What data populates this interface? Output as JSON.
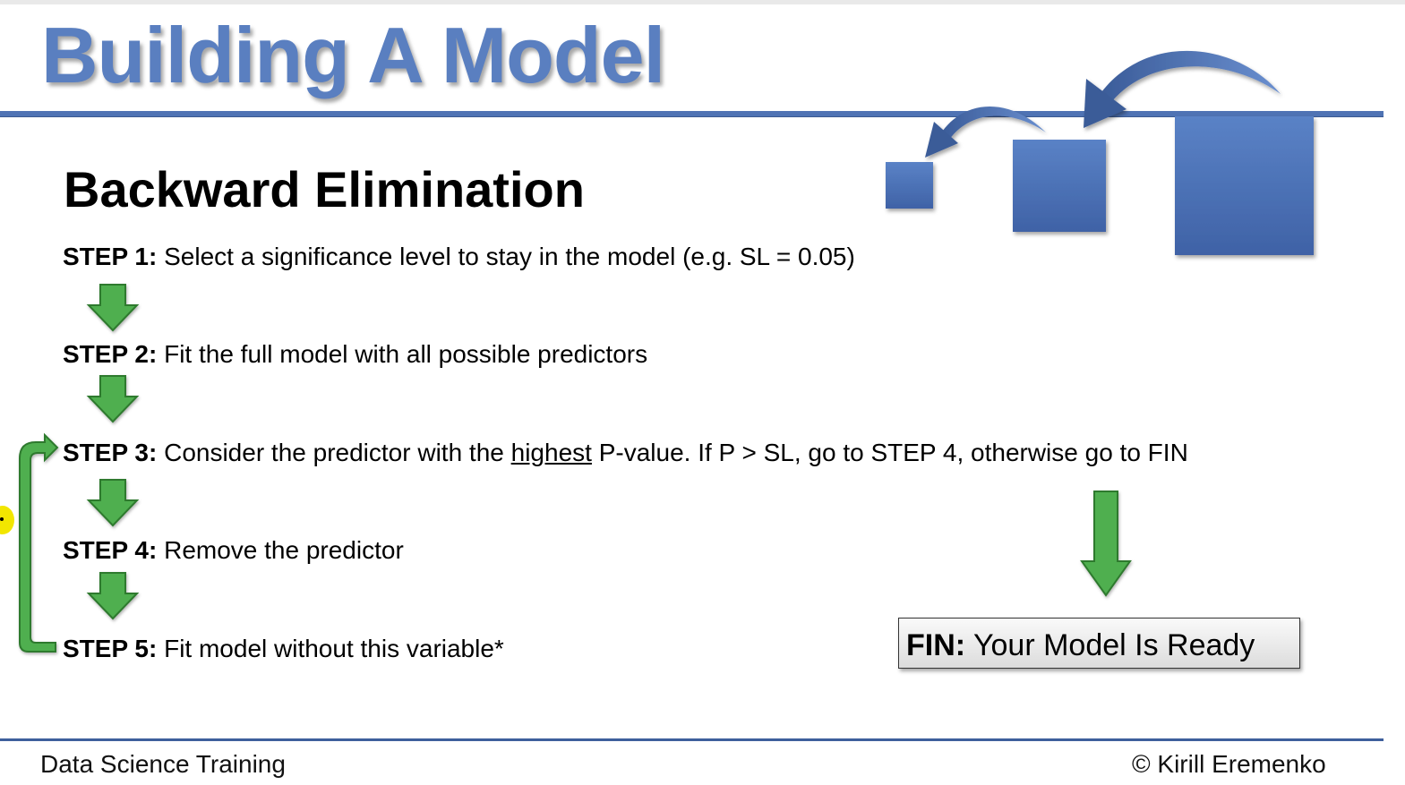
{
  "slide": {
    "title": "Building A Model",
    "subtitle": "Backward Elimination"
  },
  "steps": [
    {
      "label": "STEP 1:",
      "text": "Select a significance level to stay in the model (e.g. SL = 0.05)"
    },
    {
      "label": "STEP 2:",
      "text": "Fit the full model with all possible predictors"
    },
    {
      "label": "STEP 3:",
      "text_before": "Consider the predictor with the",
      "text_underlined": "highest",
      "text_after": "P-value. If P > SL, go to STEP 4, otherwise go to FIN"
    },
    {
      "label": "STEP 4:",
      "text": "Remove the predictor"
    },
    {
      "label": "STEP 5:",
      "text": "Fit model without this variable*"
    }
  ],
  "fin": {
    "label": "FIN:",
    "text": "Your Model Is Ready"
  },
  "footer": {
    "left": "Data Science Training",
    "right": "© Kirill Eremenko"
  },
  "colors": {
    "title": "#5a7fc0",
    "rule": "#4f73b4",
    "arrow_green": "#4faf4f",
    "arrow_green_outline": "#2f7a2f",
    "square_blue": "#4a6fb5",
    "curve_arrow": "#44639f"
  },
  "icons": {
    "down_arrow": "down-arrow-icon",
    "loop_arrow": "loop-back-arrow-icon",
    "curved_arrow": "curved-arrow-icon"
  }
}
